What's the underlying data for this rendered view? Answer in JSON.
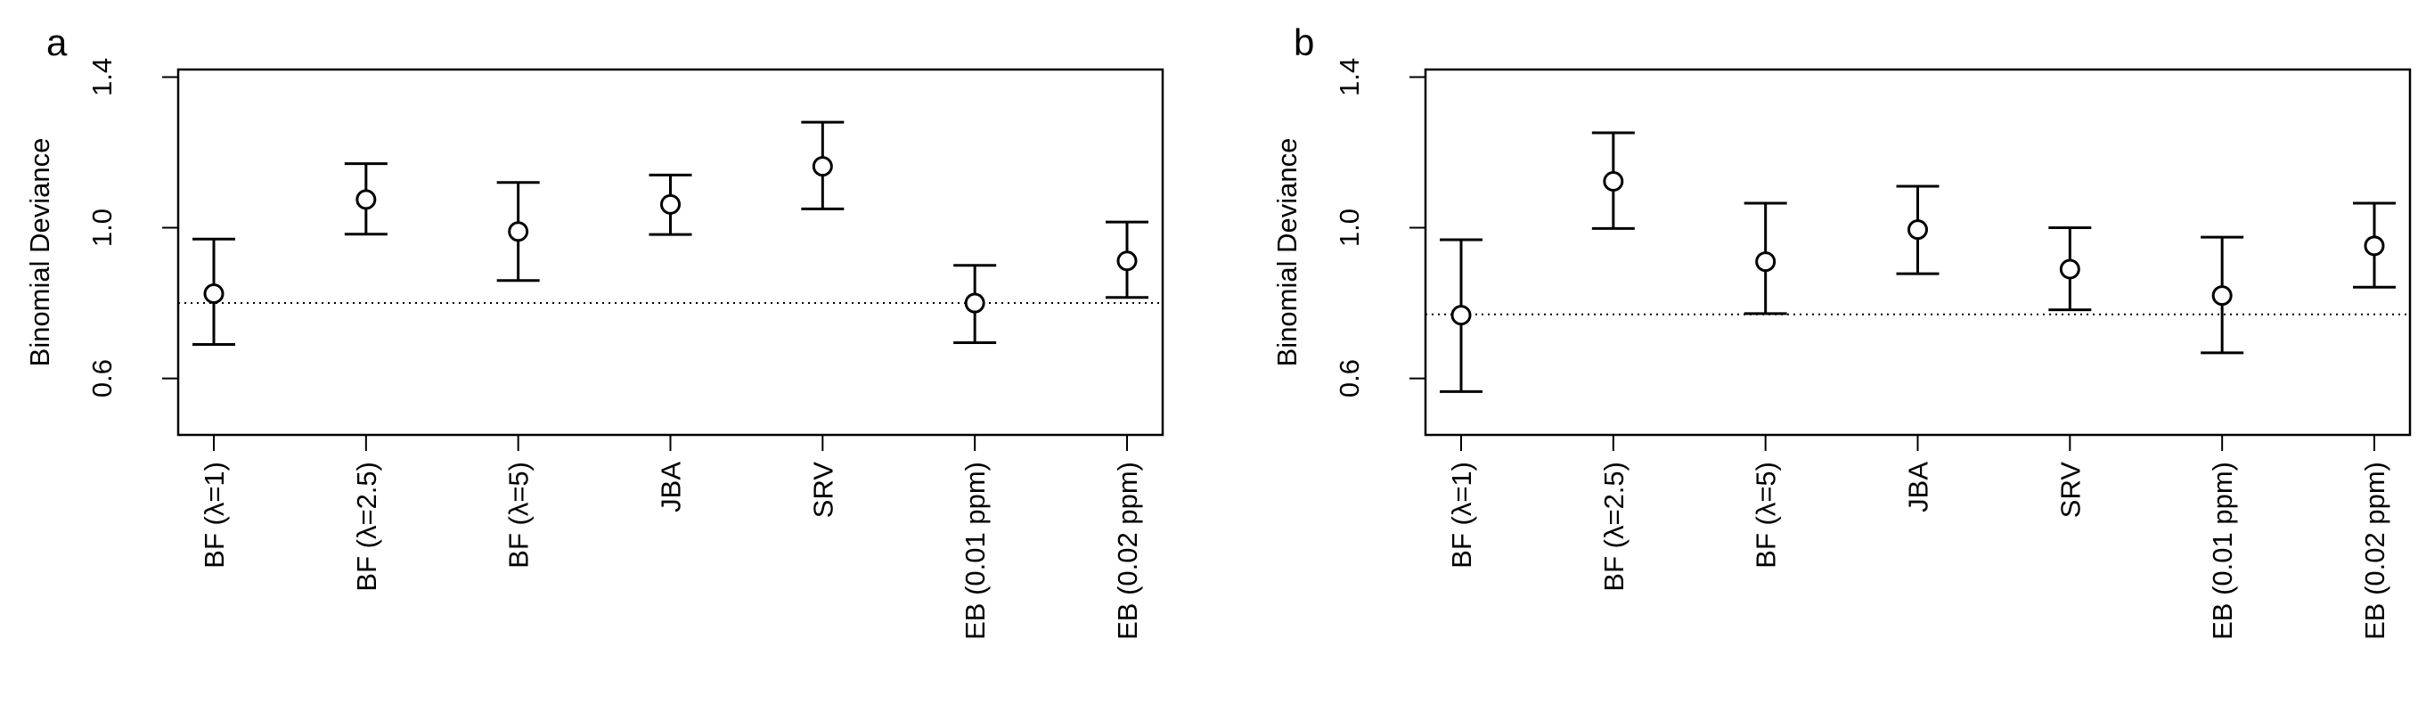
{
  "figure": {
    "panel_labels": [
      "a",
      "b"
    ]
  },
  "chart_data": [
    {
      "panel": "a",
      "type": "scatter",
      "style": "point-with-error-bars",
      "ylabel": "Binomial Deviance",
      "xlabel": "",
      "ylim": [
        0.45,
        1.42
      ],
      "yticks": [
        0.6,
        1.0,
        1.4
      ],
      "grid": false,
      "legend": "none",
      "categories": [
        "BF (λ=1)",
        "BF (λ=2.5)",
        "BF (λ=5)",
        "JBA",
        "SRV",
        "EB (0.01 ppm)",
        "EB (0.02 ppm)"
      ],
      "values": [
        0.825,
        1.075,
        0.99,
        1.062,
        1.163,
        0.8,
        0.912
      ],
      "lower": [
        0.69,
        0.983,
        0.86,
        0.982,
        1.05,
        0.695,
        0.815
      ],
      "upper": [
        0.97,
        1.17,
        1.12,
        1.14,
        1.28,
        0.9,
        1.015
      ],
      "reference_line": 0.8
    },
    {
      "panel": "b",
      "type": "scatter",
      "style": "point-with-error-bars",
      "ylabel": "Binomial Deviance",
      "xlabel": "",
      "ylim": [
        0.45,
        1.42
      ],
      "yticks": [
        0.6,
        1.0,
        1.4
      ],
      "grid": false,
      "legend": "none",
      "categories": [
        "BF (λ=1)",
        "BF (λ=2.5)",
        "BF (λ=5)",
        "JBA",
        "SRV",
        "EB (0.01 ppm)",
        "EB (0.02 ppm)"
      ],
      "values": [
        0.768,
        1.123,
        0.91,
        0.995,
        0.89,
        0.82,
        0.952
      ],
      "lower": [
        0.565,
        0.998,
        0.772,
        0.878,
        0.782,
        0.668,
        0.842
      ],
      "upper": [
        0.968,
        1.252,
        1.065,
        1.11,
        1.0,
        0.975,
        1.065
      ],
      "reference_line": 0.77
    }
  ],
  "colors": {
    "ink": "#000000",
    "background": "#ffffff"
  }
}
